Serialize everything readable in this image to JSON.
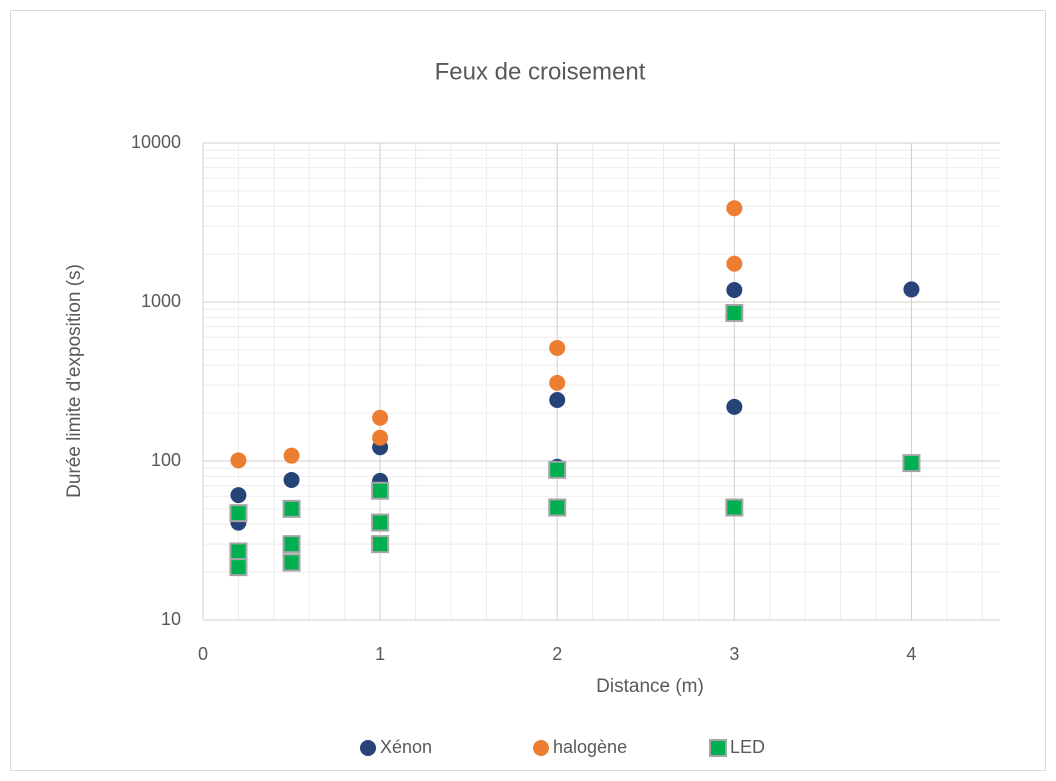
{
  "chart_data": {
    "type": "scatter",
    "title": "Feux de croisement",
    "x_label": "Distance (m)",
    "y_label": "Durée limite d'exposition (s)",
    "xlim": [
      0,
      4.5
    ],
    "xticks": [
      0,
      1,
      2,
      3,
      4
    ],
    "ylim": [
      10,
      10000
    ],
    "yticks": [
      10,
      100,
      1000,
      10000
    ],
    "log_y": true,
    "grid": true,
    "minor_grid": true,
    "legend": "bottom",
    "series": [
      {
        "name": "Xénon",
        "color": "#264478",
        "marker": "circle",
        "x": [
          0.2,
          0.2,
          0.5,
          1,
          1,
          2,
          2,
          3,
          3,
          4
        ],
        "values": [
          61,
          41,
          76,
          122,
          75,
          242,
          92,
          1190,
          219,
          1200
        ]
      },
      {
        "name": "halogène",
        "color": "#ed7d31",
        "marker": "circle",
        "x": [
          0.2,
          0.5,
          1,
          1,
          2,
          2,
          3,
          3
        ],
        "values": [
          101,
          108,
          187,
          140,
          514,
          310,
          3890,
          1740
        ]
      },
      {
        "name": "LED",
        "color": "#00b050",
        "marker": "square",
        "x": [
          0.2,
          0.2,
          0.2,
          0.5,
          0.5,
          0.5,
          1,
          1,
          1,
          2,
          2,
          3,
          3,
          4
        ],
        "values": [
          47,
          27,
          21.5,
          50,
          30,
          23,
          65,
          41,
          30,
          88,
          51,
          853,
          51,
          97
        ]
      }
    ]
  }
}
